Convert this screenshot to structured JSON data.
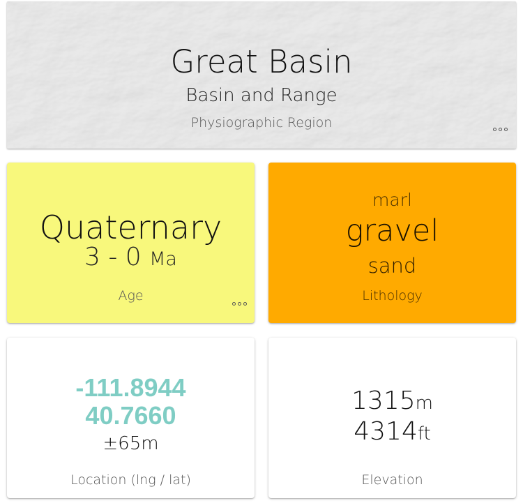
{
  "region": {
    "name": "Great Basin",
    "subname": "Basin and Range",
    "label": "Physiographic Region",
    "background": "#e6e6e6"
  },
  "age": {
    "era": "Quaternary",
    "range": "3 - 0",
    "unit": "Ma",
    "label": "Age",
    "color": "#f8f87c"
  },
  "lithology": {
    "minor": "marl",
    "major": "gravel",
    "secondary": "sand",
    "label": "Lithology",
    "color": "#ffaa00"
  },
  "location": {
    "lng": "-111.8944",
    "lat": "40.7660",
    "accuracy": "±65m",
    "label": "Location (lng / lat)",
    "coord_color": "#7fcdc4"
  },
  "elevation": {
    "meters": "1315",
    "meters_unit": "m",
    "feet": "4314",
    "feet_unit": "ft",
    "label": "Elevation"
  },
  "icons": {
    "more": "more-horizontal-icon"
  }
}
